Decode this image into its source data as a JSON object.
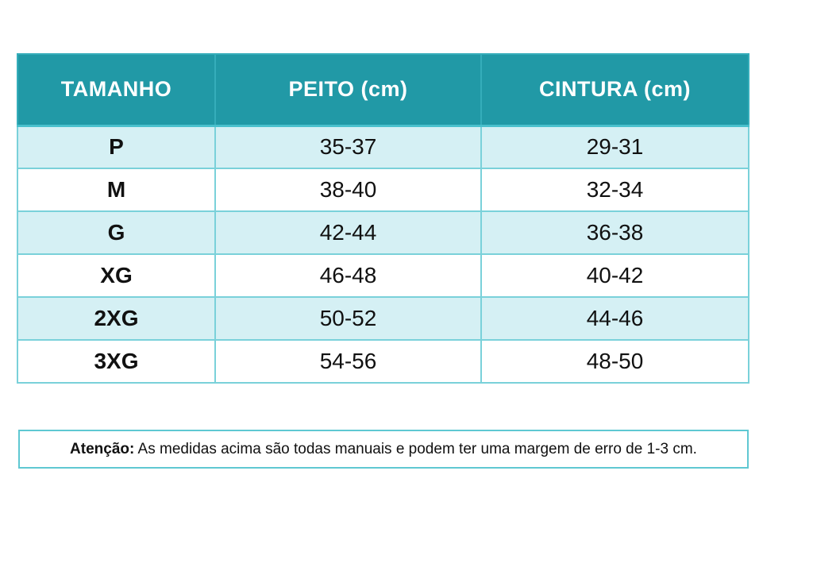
{
  "table": {
    "columns": [
      {
        "label": "TAMANHO"
      },
      {
        "label": "PEITO (cm)"
      },
      {
        "label": "CINTURA (cm)"
      }
    ],
    "rows": [
      {
        "size": "P",
        "peito": "35-37",
        "cintura": "29-31"
      },
      {
        "size": "M",
        "peito": "38-40",
        "cintura": "32-34"
      },
      {
        "size": "G",
        "peito": "42-44",
        "cintura": "36-38"
      },
      {
        "size": "XG",
        "peito": "46-48",
        "cintura": "40-42"
      },
      {
        "size": "2XG",
        "peito": "50-52",
        "cintura": "44-46"
      },
      {
        "size": "3XG",
        "peito": "54-56",
        "cintura": "48-50"
      }
    ]
  },
  "note": {
    "bold_label": "Atenção:",
    "text": " As medidas acima são todas manuais e podem ter uma margem de erro de 1-3 cm."
  },
  "colors": {
    "header_bg": "#2199a6",
    "header_text": "#ffffff",
    "row_alt_bg": "#d5f0f4",
    "row_bg": "#ffffff",
    "cell_border": "#7ad1da",
    "note_border": "#5fc8d2",
    "text": "#111111"
  }
}
